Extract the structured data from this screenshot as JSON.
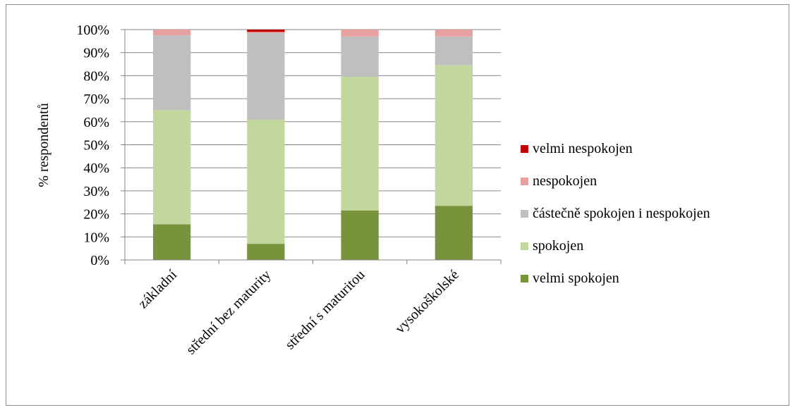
{
  "chart_data": {
    "type": "bar",
    "stacked": true,
    "categories": [
      "základní",
      "střední bez maturity",
      "střední s maturitou",
      "vysokoškolské"
    ],
    "series": [
      {
        "name": "velmi spokojen",
        "color": "#77933c",
        "values": [
          15.5,
          7,
          21.5,
          23.5
        ]
      },
      {
        "name": "spokojen",
        "color": "#c3d69b",
        "values": [
          49.5,
          54,
          58,
          61
        ]
      },
      {
        "name": "částečně spokojen i nespokojen",
        "color": "#bfbfbf",
        "values": [
          32.5,
          37.5,
          17.5,
          12.5
        ]
      },
      {
        "name": "nespokojen",
        "color": "#e6a0a0",
        "values": [
          2.5,
          0.5,
          3,
          3
        ]
      },
      {
        "name": "velmi nespokojen",
        "color": "#c00000",
        "values": [
          0,
          1,
          0,
          0
        ]
      }
    ],
    "yticks": [
      "0%",
      "10%",
      "20%",
      "30%",
      "40%",
      "50%",
      "60%",
      "70%",
      "80%",
      "90%",
      "100%"
    ],
    "ylim": [
      0,
      100
    ],
    "ylabel": "% respondentů",
    "xlabel": "",
    "legend_position": "right",
    "legend_order": [
      "velmi nespokojen",
      "nespokojen",
      "částečně spokojen i nespokojen",
      "spokojen",
      "velmi spokojen"
    ],
    "grid": true
  }
}
